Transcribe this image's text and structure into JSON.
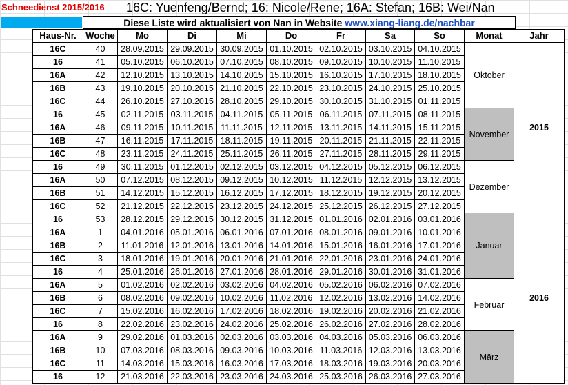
{
  "header": {
    "title_left": "Schneedienst 2015/2016",
    "title_main": "16C: Yuenfeng/Bernd; 16: Nicole/Rene; 16A: Stefan; 16B: Wei/Nan",
    "subtitle_text": "Diese Liste wird aktualisiert von Nan in Website ",
    "subtitle_url": "www.xiang-liang.de/nachbar"
  },
  "columns": [
    "Haus-Nr.",
    "Woche",
    "Mo",
    "Di",
    "Mi",
    "Do",
    "Fr",
    "Sa",
    "So",
    "Monat",
    "Jahr"
  ],
  "rows": [
    {
      "haus": "16C",
      "woche": "40",
      "days": [
        "28.09.2015",
        "29.09.2015",
        "30.09.2015",
        "01.10.2015",
        "02.10.2015",
        "03.10.2015",
        "04.10.2015"
      ]
    },
    {
      "haus": "16",
      "woche": "41",
      "days": [
        "05.10.2015",
        "06.10.2015",
        "07.10.2015",
        "08.10.2015",
        "09.10.2015",
        "10.10.2015",
        "11.10.2015"
      ]
    },
    {
      "haus": "16A",
      "woche": "42",
      "days": [
        "12.10.2015",
        "13.10.2015",
        "14.10.2015",
        "15.10.2015",
        "16.10.2015",
        "17.10.2015",
        "18.10.2015"
      ]
    },
    {
      "haus": "16B",
      "woche": "43",
      "days": [
        "19.10.2015",
        "20.10.2015",
        "21.10.2015",
        "22.10.2015",
        "23.10.2015",
        "24.10.2015",
        "25.10.2015"
      ]
    },
    {
      "haus": "16C",
      "woche": "44",
      "days": [
        "26.10.2015",
        "27.10.2015",
        "28.10.2015",
        "29.10.2015",
        "30.10.2015",
        "31.10.2015",
        "01.11.2015"
      ]
    },
    {
      "haus": "16",
      "woche": "45",
      "days": [
        "02.11.2015",
        "03.11.2015",
        "04.11.2015",
        "05.11.2015",
        "06.11.2015",
        "07.11.2015",
        "08.11.2015"
      ]
    },
    {
      "haus": "16A",
      "woche": "46",
      "days": [
        "09.11.2015",
        "10.11.2015",
        "11.11.2015",
        "12.11.2015",
        "13.11.2015",
        "14.11.2015",
        "15.11.2015"
      ]
    },
    {
      "haus": "16B",
      "woche": "47",
      "days": [
        "16.11.2015",
        "17.11.2015",
        "18.11.2015",
        "19.11.2015",
        "20.11.2015",
        "21.11.2015",
        "22.11.2015"
      ]
    },
    {
      "haus": "16C",
      "woche": "48",
      "days": [
        "23.11.2015",
        "24.11.2015",
        "25.11.2015",
        "26.11.2015",
        "27.11.2015",
        "28.11.2015",
        "29.11.2015"
      ]
    },
    {
      "haus": "16",
      "woche": "49",
      "days": [
        "30.11.2015",
        "01.12.2015",
        "02.12.2015",
        "03.12.2015",
        "04.12.2015",
        "05.12.2015",
        "06.12.2015"
      ]
    },
    {
      "haus": "16A",
      "woche": "50",
      "days": [
        "07.12.2015",
        "08.12.2015",
        "09.12.2015",
        "10.12.2015",
        "11.12.2015",
        "12.12.2015",
        "13.12.2015"
      ]
    },
    {
      "haus": "16B",
      "woche": "51",
      "days": [
        "14.12.2015",
        "15.12.2015",
        "16.12.2015",
        "17.12.2015",
        "18.12.2015",
        "19.12.2015",
        "20.12.2015"
      ]
    },
    {
      "haus": "16C",
      "woche": "52",
      "days": [
        "21.12.2015",
        "22.12.2015",
        "23.12.2015",
        "24.12.2015",
        "25.12.2015",
        "26.12.2015",
        "27.12.2015"
      ]
    },
    {
      "haus": "16",
      "woche": "53",
      "days": [
        "28.12.2015",
        "29.12.2015",
        "30.12.2015",
        "31.12.2015",
        "01.01.2016",
        "02.01.2016",
        "03.01.2016"
      ]
    },
    {
      "haus": "16A",
      "woche": "1",
      "days": [
        "04.01.2016",
        "05.01.2016",
        "06.01.2016",
        "07.01.2016",
        "08.01.2016",
        "09.01.2016",
        "10.01.2016"
      ]
    },
    {
      "haus": "16B",
      "woche": "2",
      "days": [
        "11.01.2016",
        "12.01.2016",
        "13.01.2016",
        "14.01.2016",
        "15.01.2016",
        "16.01.2016",
        "17.01.2016"
      ]
    },
    {
      "haus": "16C",
      "woche": "3",
      "days": [
        "18.01.2016",
        "19.01.2016",
        "20.01.2016",
        "21.01.2016",
        "22.01.2016",
        "23.01.2016",
        "24.01.2016"
      ]
    },
    {
      "haus": "16",
      "woche": "4",
      "days": [
        "25.01.2016",
        "26.01.2016",
        "27.01.2016",
        "28.01.2016",
        "29.01.2016",
        "30.01.2016",
        "31.01.2016"
      ]
    },
    {
      "haus": "16A",
      "woche": "5",
      "days": [
        "01.02.2016",
        "02.02.2016",
        "03.02.2016",
        "04.02.2016",
        "05.02.2016",
        "06.02.2016",
        "07.02.2016"
      ]
    },
    {
      "haus": "16B",
      "woche": "6",
      "days": [
        "08.02.2016",
        "09.02.2016",
        "10.02.2016",
        "11.02.2016",
        "12.02.2016",
        "13.02.2016",
        "14.02.2016"
      ]
    },
    {
      "haus": "16C",
      "woche": "7",
      "days": [
        "15.02.2016",
        "16.02.2016",
        "17.02.2016",
        "18.02.2016",
        "19.02.2016",
        "20.02.2016",
        "21.02.2016"
      ]
    },
    {
      "haus": "16",
      "woche": "8",
      "days": [
        "22.02.2016",
        "23.02.2016",
        "24.02.2016",
        "25.02.2016",
        "26.02.2016",
        "27.02.2016",
        "28.02.2016"
      ]
    },
    {
      "haus": "16A",
      "woche": "9",
      "days": [
        "29.02.2016",
        "01.03.2016",
        "02.03.2016",
        "03.03.2016",
        "04.03.2016",
        "05.03.2016",
        "06.03.2016"
      ]
    },
    {
      "haus": "16B",
      "woche": "10",
      "days": [
        "07.03.2016",
        "08.03.2016",
        "09.03.2016",
        "10.03.2016",
        "11.03.2016",
        "12.03.2016",
        "13.03.2016"
      ]
    },
    {
      "haus": "16C",
      "woche": "11",
      "days": [
        "14.03.2016",
        "15.03.2016",
        "16.03.2016",
        "17.03.2016",
        "18.03.2016",
        "19.03.2016",
        "20.03.2016"
      ]
    },
    {
      "haus": "16",
      "woche": "12",
      "days": [
        "21.03.2016",
        "22.03.2016",
        "23.03.2016",
        "24.03.2016",
        "25.03.2016",
        "26.03.2016",
        "27.03.2016"
      ]
    }
  ],
  "months": [
    {
      "label": "Oktober",
      "rows": 5,
      "shaded": false
    },
    {
      "label": "November",
      "rows": 4,
      "shaded": true
    },
    {
      "label": "Dezember",
      "rows": 4,
      "shaded": false
    },
    {
      "label": "Januar",
      "rows": 5,
      "shaded": true
    },
    {
      "label": "Februar",
      "rows": 4,
      "shaded": false
    },
    {
      "label": "März",
      "rows": 4,
      "shaded": true
    }
  ],
  "years": [
    {
      "label": "2015",
      "rows": 13
    },
    {
      "label": "2016",
      "rows": 13
    }
  ]
}
